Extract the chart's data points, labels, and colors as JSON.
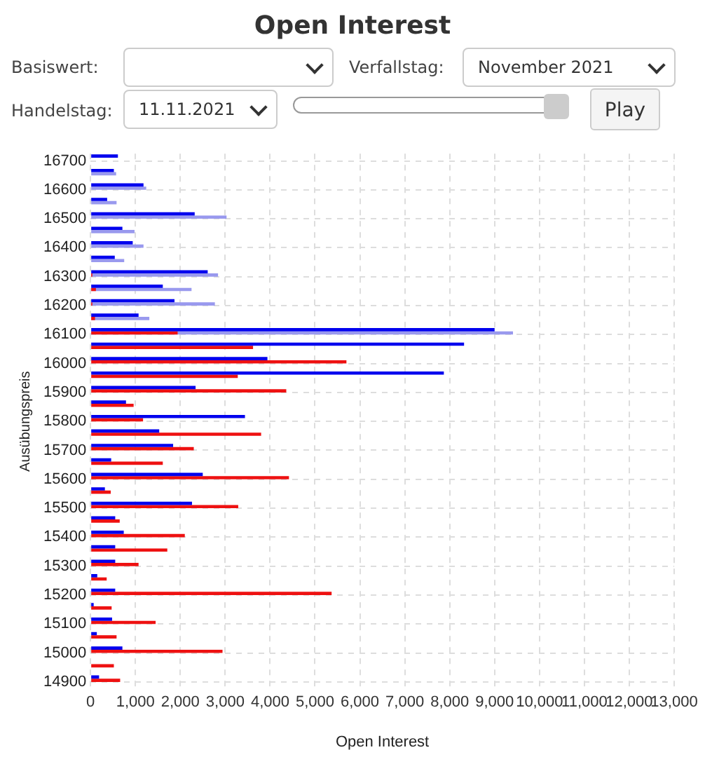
{
  "chart_data": {
    "type": "bar",
    "orientation": "horizontal",
    "title": "Open Interest",
    "xlabel": "Open Interest",
    "ylabel": "Ausübungspreis",
    "annotations": [
      "Basiswert:",
      "Verfallstag:",
      "November 2021",
      "Handelstag:",
      "11.11.2021",
      "Play"
    ],
    "categories": [
      "16700",
      null,
      "16600",
      null,
      "16500",
      null,
      "16400",
      null,
      "16300",
      null,
      "16200",
      null,
      "16100",
      null,
      "16000",
      null,
      "15900",
      null,
      "15800",
      null,
      "15700",
      null,
      "15600",
      null,
      "15500",
      null,
      "15400",
      null,
      "15300",
      null,
      "15200",
      null,
      "15100",
      null,
      "15000",
      null,
      "14900"
    ],
    "series": [
      {
        "color": "#0000ee",
        "values": [
          610,
          520,
          1180,
          370,
          2320,
          710,
          940,
          540,
          2610,
          1610,
          1870,
          1070,
          9000,
          8320,
          3940,
          7870,
          2340,
          790,
          3440,
          1530,
          1840,
          460,
          2500,
          320,
          2260,
          550,
          740,
          550,
          550,
          150,
          550,
          70,
          480,
          140,
          710,
          null,
          190
        ]
      },
      {
        "color": "#ee1111",
        "values": [
          null,
          null,
          null,
          null,
          null,
          null,
          null,
          null,
          40,
          120,
          40,
          100,
          1940,
          3620,
          5700,
          3280,
          4360,
          960,
          1170,
          3800,
          2300,
          1610,
          4420,
          450,
          3290,
          650,
          2100,
          1710,
          1070,
          360,
          5370,
          470,
          1450,
          580,
          2940,
          520,
          660
        ]
      },
      {
        "color": "#9999ee",
        "values": [
          null,
          570,
          1240,
          580,
          3030,
          980,
          1180,
          750,
          2840,
          2250,
          2770,
          1310,
          9410,
          null,
          null,
          null,
          null,
          null,
          null,
          null,
          null,
          null,
          null,
          null,
          null,
          null,
          null,
          null,
          null,
          null,
          null,
          null,
          null,
          null,
          null,
          null,
          null
        ]
      }
    ],
    "xlim": [
      0,
      13000
    ],
    "xticks": [
      0,
      {
        "value": 1000,
        "label": "1,000"
      },
      {
        "value": 2000,
        "label": "2,000"
      },
      {
        "value": 3000,
        "label": "3,000"
      },
      {
        "value": 4000,
        "label": "4,000"
      },
      {
        "value": 5000,
        "label": "5,000"
      },
      {
        "value": 6000,
        "label": "6,000"
      },
      {
        "value": 7000,
        "label": "7,000"
      },
      {
        "value": 8000,
        "label": "8,000"
      },
      {
        "value": 9000,
        "label": "9,000"
      },
      {
        "value": 10000,
        "label": "10,000"
      },
      {
        "value": 11000,
        "label": "11,000"
      },
      {
        "value": 12000,
        "label": "12,000"
      },
      {
        "value": 13000,
        "label": "13,000"
      }
    ],
    "grid": true,
    "legend": false
  }
}
